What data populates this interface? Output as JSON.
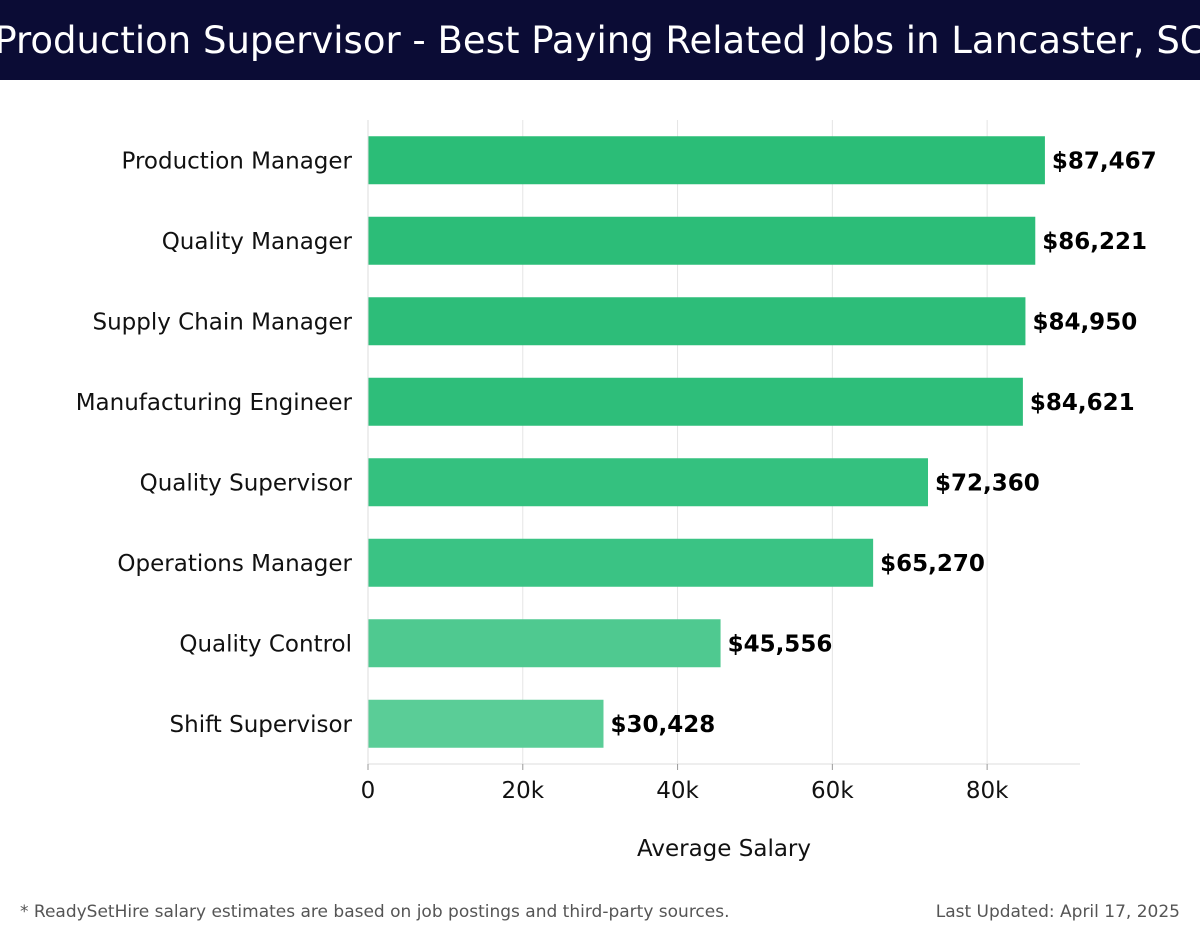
{
  "header": {
    "title": "Production Supervisor - Best Paying Related Jobs in Lancaster, SC"
  },
  "chart_data": {
    "type": "bar",
    "orientation": "horizontal",
    "title": "Production Supervisor - Best Paying Related Jobs in Lancaster, SC",
    "xlabel": "Average Salary",
    "ylabel": "",
    "categories": [
      "Production Manager",
      "Quality Manager",
      "Supply Chain Manager",
      "Manufacturing Engineer",
      "Quality Supervisor",
      "Operations Manager",
      "Quality Control",
      "Shift Supervisor"
    ],
    "values": [
      87467,
      86221,
      84950,
      84621,
      72360,
      65270,
      45556,
      30428
    ],
    "value_labels": [
      "$87,467",
      "$86,221",
      "$84,950",
      "$84,621",
      "$72,360",
      "$65,270",
      "$45,556",
      "$30,428"
    ],
    "x_ticks": [
      0,
      20000,
      40000,
      60000,
      80000
    ],
    "x_tick_labels": [
      "0",
      "20k",
      "40k",
      "60k",
      "80k"
    ],
    "xlim": [
      0,
      92000
    ],
    "grid": "vertical",
    "bar_colors": [
      "#2bbd77",
      "#2cbd78",
      "#2dbd79",
      "#2ebe7a",
      "#34c17f",
      "#3ac384",
      "#4fc990",
      "#5acd97"
    ]
  },
  "footer": {
    "note": "* ReadySetHire salary estimates are based on job postings and third-party sources.",
    "updated": "Last Updated: April 17, 2025"
  }
}
